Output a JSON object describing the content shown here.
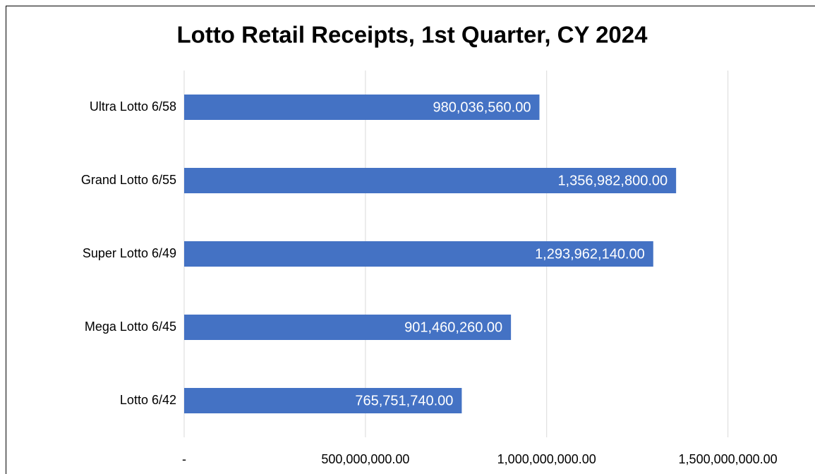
{
  "chart_data": {
    "type": "bar",
    "orientation": "horizontal",
    "title": "Lotto Retail Receipts, 1st Quarter, CY 2024",
    "categories": [
      "Ultra Lotto 6/58",
      "Grand Lotto 6/55",
      "Super Lotto 6/49",
      "Mega Lotto 6/45",
      "Lotto 6/42"
    ],
    "values": [
      980036560,
      1356982800,
      1293962140,
      901460260,
      765751740
    ],
    "value_labels": [
      "980,036,560.00",
      "1,356,982,800.00",
      "1,293,962,140.00",
      "901,460,260.00",
      "765,751,740.00"
    ],
    "color": "#4472c4",
    "xlim": [
      0,
      1600000000
    ],
    "xticks": [
      {
        "value": 0,
        "label": "-"
      },
      {
        "value": 500000000,
        "label": "500,000,000.00"
      },
      {
        "value": 1000000000,
        "label": "1,000,000,000.00"
      },
      {
        "value": 1500000000,
        "label": "1,500,000,000.00"
      }
    ],
    "grid": true
  }
}
